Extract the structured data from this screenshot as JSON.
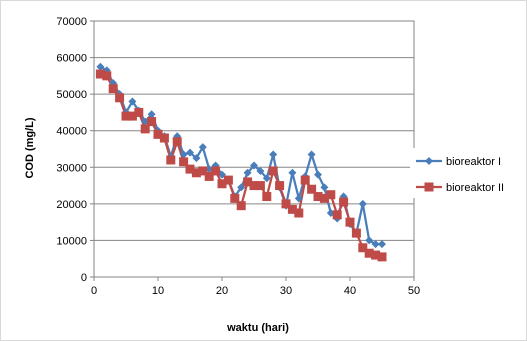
{
  "chart_data": {
    "type": "line",
    "xlabel": "waktu (hari)",
    "ylabel": "COD (mg/L)",
    "xlim": [
      0,
      50
    ],
    "ylim": [
      0,
      70000
    ],
    "x_ticks": [
      0,
      10,
      20,
      30,
      40,
      50
    ],
    "y_ticks": [
      0,
      10000,
      20000,
      30000,
      40000,
      50000,
      60000,
      70000
    ],
    "grid": "horizontal",
    "legend_position": "right",
    "series": [
      {
        "name": "bioreaktor I",
        "color": "#4a7ebb",
        "marker": "diamond",
        "x": [
          1,
          2,
          3,
          4,
          5,
          6,
          7,
          8,
          9,
          10,
          11,
          12,
          13,
          14,
          15,
          16,
          17,
          18,
          19,
          20,
          21,
          22,
          23,
          24,
          25,
          26,
          27,
          28,
          29,
          30,
          31,
          32,
          33,
          34,
          35,
          36,
          37,
          38,
          39,
          40,
          41,
          42,
          43,
          44,
          45
        ],
        "y": [
          57500,
          56500,
          53000,
          50000,
          45000,
          48000,
          45500,
          42500,
          44500,
          40000,
          38500,
          33000,
          38500,
          33500,
          34000,
          32500,
          35500,
          29500,
          30500,
          28000,
          26500,
          22000,
          24500,
          28500,
          30500,
          29000,
          27000,
          33500,
          24500,
          19500,
          28500,
          21500,
          27500,
          33500,
          28000,
          24500,
          17500,
          16000,
          22000,
          14500,
          12000,
          20000,
          10000,
          9000,
          9000
        ]
      },
      {
        "name": "bioreaktor II",
        "color": "#be4b48",
        "marker": "square",
        "x": [
          1,
          2,
          3,
          4,
          5,
          6,
          7,
          8,
          9,
          10,
          11,
          12,
          13,
          14,
          15,
          16,
          17,
          18,
          19,
          20,
          21,
          22,
          23,
          24,
          25,
          26,
          27,
          28,
          29,
          30,
          31,
          32,
          33,
          34,
          35,
          36,
          37,
          38,
          39,
          40,
          41,
          42,
          43,
          44,
          45
        ],
        "y": [
          55500,
          55000,
          51500,
          49000,
          44000,
          44000,
          45000,
          40500,
          42500,
          39000,
          38000,
          32000,
          37000,
          31500,
          29500,
          28500,
          29000,
          27500,
          29000,
          25500,
          26500,
          21500,
          19500,
          26000,
          25000,
          25000,
          22000,
          29000,
          25000,
          20000,
          18500,
          17500,
          26500,
          24000,
          22000,
          21500,
          22500,
          17000,
          20500,
          15000,
          12000,
          8000,
          6500,
          6000,
          5500
        ]
      }
    ]
  }
}
